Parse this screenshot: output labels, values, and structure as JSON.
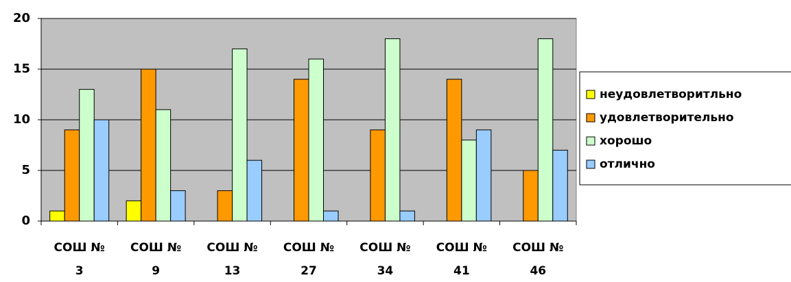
{
  "chart_data": {
    "type": "bar",
    "categories": [
      "СОШ № 3",
      "СОШ № 9",
      "СОШ № 13",
      "СОШ № 27",
      "СОШ № 34",
      "СОШ № 41",
      "СОШ № 46"
    ],
    "series": [
      {
        "name": "неудовлетворитльно",
        "color": "#ffff00",
        "values": [
          1,
          2,
          0,
          0,
          0,
          0,
          0
        ]
      },
      {
        "name": "удовлетворительно",
        "color": "#ff9900",
        "values": [
          9,
          15,
          3,
          14,
          9,
          14,
          5
        ]
      },
      {
        "name": "хорошо",
        "color": "#ccffcc",
        "values": [
          13,
          11,
          17,
          16,
          18,
          8,
          18
        ]
      },
      {
        "name": "отлично",
        "color": "#99ccff",
        "values": [
          10,
          3,
          6,
          1,
          1,
          9,
          7
        ]
      }
    ],
    "ylim": [
      0,
      20
    ],
    "yticks": [
      0,
      5,
      10,
      15,
      20
    ],
    "grid": true,
    "legend": "right"
  }
}
